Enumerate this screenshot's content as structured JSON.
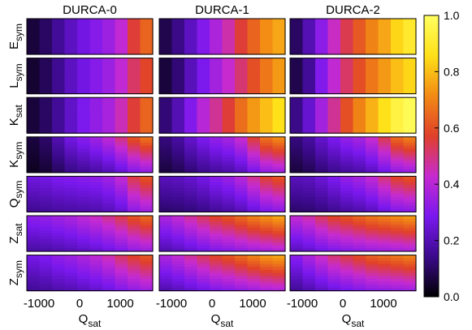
{
  "chart_data": {
    "type": "heatmap",
    "columns": [
      "DURCA-0",
      "DURCA-1",
      "DURCA-2"
    ],
    "rows": [
      {
        "label": "E",
        "sub": "sym"
      },
      {
        "label": "L",
        "sub": "sym"
      },
      {
        "label": "K",
        "sub": "sat"
      },
      {
        "label": "K",
        "sub": "sym"
      },
      {
        "label": "Q",
        "sub": "sym"
      },
      {
        "label": "Z",
        "sub": "sat"
      },
      {
        "label": "Z",
        "sub": "sym"
      }
    ],
    "xlabel": {
      "label": "Q",
      "sub": "sat"
    },
    "xticks": [
      "-1000",
      "0",
      "1000"
    ],
    "xtick_values": [
      -1000,
      0,
      1000
    ],
    "xlim": [
      -1300,
      1800
    ],
    "colorbar": {
      "ticks": [
        "0.0",
        "0.2",
        "0.4",
        "0.6",
        "0.8",
        "1.0"
      ],
      "tick_values": [
        0,
        0.2,
        0.4,
        0.6,
        0.8,
        1.0
      ],
      "range": [
        0,
        1
      ],
      "colormap": [
        "#000000",
        "#3b0a8c",
        "#7a18ee",
        "#c62bd0",
        "#e0402a",
        "#f28a14",
        "#ffe019",
        "#ffff60"
      ]
    },
    "grid": false,
    "panels": [
      [
        {
          "base": [
            0.06,
            0.1,
            0.16,
            0.22,
            0.27,
            0.31,
            0.35,
            0.42,
            0.56,
            0.64
          ],
          "top": 1.0,
          "bottom": 1.0
        },
        {
          "base": [
            0.05,
            0.09,
            0.15,
            0.22,
            0.27,
            0.31,
            0.35,
            0.42,
            0.52,
            0.58
          ],
          "top": 1.0,
          "bottom": 1.0
        },
        {
          "base": [
            0.06,
            0.1,
            0.16,
            0.23,
            0.29,
            0.33,
            0.37,
            0.45,
            0.56,
            0.64
          ],
          "top": 1.0,
          "bottom": 1.0
        },
        {
          "base": [
            0.06,
            0.1,
            0.18,
            0.25,
            0.29,
            0.33,
            0.38,
            0.46,
            0.56,
            0.62
          ],
          "top": 1.08,
          "bottom": 0.55
        },
        {
          "base": [
            0.25,
            0.26,
            0.28,
            0.29,
            0.3,
            0.31,
            0.34,
            0.4,
            0.52,
            0.58
          ],
          "top": 1.05,
          "bottom": 0.62
        },
        {
          "base": [
            0.3,
            0.31,
            0.33,
            0.35,
            0.38,
            0.41,
            0.45,
            0.5,
            0.56,
            0.6
          ],
          "top": 1.08,
          "bottom": 0.6
        },
        {
          "base": [
            0.26,
            0.28,
            0.31,
            0.33,
            0.36,
            0.39,
            0.43,
            0.49,
            0.54,
            0.58
          ],
          "top": 1.06,
          "bottom": 0.62
        }
      ],
      [
        {
          "base": [
            0.08,
            0.14,
            0.22,
            0.3,
            0.38,
            0.46,
            0.56,
            0.64,
            0.72,
            0.76
          ],
          "top": 1.0,
          "bottom": 1.0
        },
        {
          "base": [
            0.06,
            0.12,
            0.21,
            0.29,
            0.36,
            0.43,
            0.51,
            0.6,
            0.68,
            0.74
          ],
          "top": 1.0,
          "bottom": 1.0
        },
        {
          "base": [
            0.12,
            0.2,
            0.3,
            0.4,
            0.48,
            0.56,
            0.66,
            0.74,
            0.8,
            0.86
          ],
          "top": 1.0,
          "bottom": 1.0
        },
        {
          "base": [
            0.12,
            0.16,
            0.22,
            0.27,
            0.31,
            0.34,
            0.4,
            0.52,
            0.62,
            0.66
          ],
          "top": 1.08,
          "bottom": 0.55
        },
        {
          "base": [
            0.2,
            0.21,
            0.23,
            0.26,
            0.3,
            0.33,
            0.38,
            0.46,
            0.54,
            0.58
          ],
          "top": 1.05,
          "bottom": 0.55
        },
        {
          "base": [
            0.36,
            0.4,
            0.45,
            0.5,
            0.55,
            0.58,
            0.62,
            0.66,
            0.69,
            0.72
          ],
          "top": 1.05,
          "bottom": 0.55
        },
        {
          "base": [
            0.36,
            0.4,
            0.45,
            0.5,
            0.55,
            0.58,
            0.62,
            0.66,
            0.7,
            0.72
          ],
          "top": 1.05,
          "bottom": 0.55
        }
      ],
      [
        {
          "base": [
            0.1,
            0.2,
            0.32,
            0.44,
            0.54,
            0.62,
            0.7,
            0.76,
            0.84,
            0.9
          ],
          "top": 1.0,
          "bottom": 1.0
        },
        {
          "base": [
            0.08,
            0.16,
            0.3,
            0.42,
            0.52,
            0.6,
            0.68,
            0.74,
            0.8,
            0.84
          ],
          "top": 1.0,
          "bottom": 1.0
        },
        {
          "base": [
            0.14,
            0.24,
            0.36,
            0.48,
            0.6,
            0.7,
            0.78,
            0.86,
            0.94,
            0.98
          ],
          "top": 1.0,
          "bottom": 1.0
        },
        {
          "base": [
            0.12,
            0.16,
            0.22,
            0.27,
            0.31,
            0.34,
            0.4,
            0.5,
            0.6,
            0.64
          ],
          "top": 1.08,
          "bottom": 0.55
        },
        {
          "base": [
            0.2,
            0.21,
            0.24,
            0.28,
            0.32,
            0.35,
            0.4,
            0.48,
            0.55,
            0.58
          ],
          "top": 1.05,
          "bottom": 0.55
        },
        {
          "base": [
            0.4,
            0.44,
            0.5,
            0.55,
            0.58,
            0.61,
            0.64,
            0.66,
            0.68,
            0.7
          ],
          "top": 1.05,
          "bottom": 0.55
        },
        {
          "base": [
            0.3,
            0.36,
            0.42,
            0.48,
            0.52,
            0.56,
            0.6,
            0.62,
            0.64,
            0.66
          ],
          "top": 1.05,
          "bottom": 0.55
        }
      ]
    ]
  }
}
